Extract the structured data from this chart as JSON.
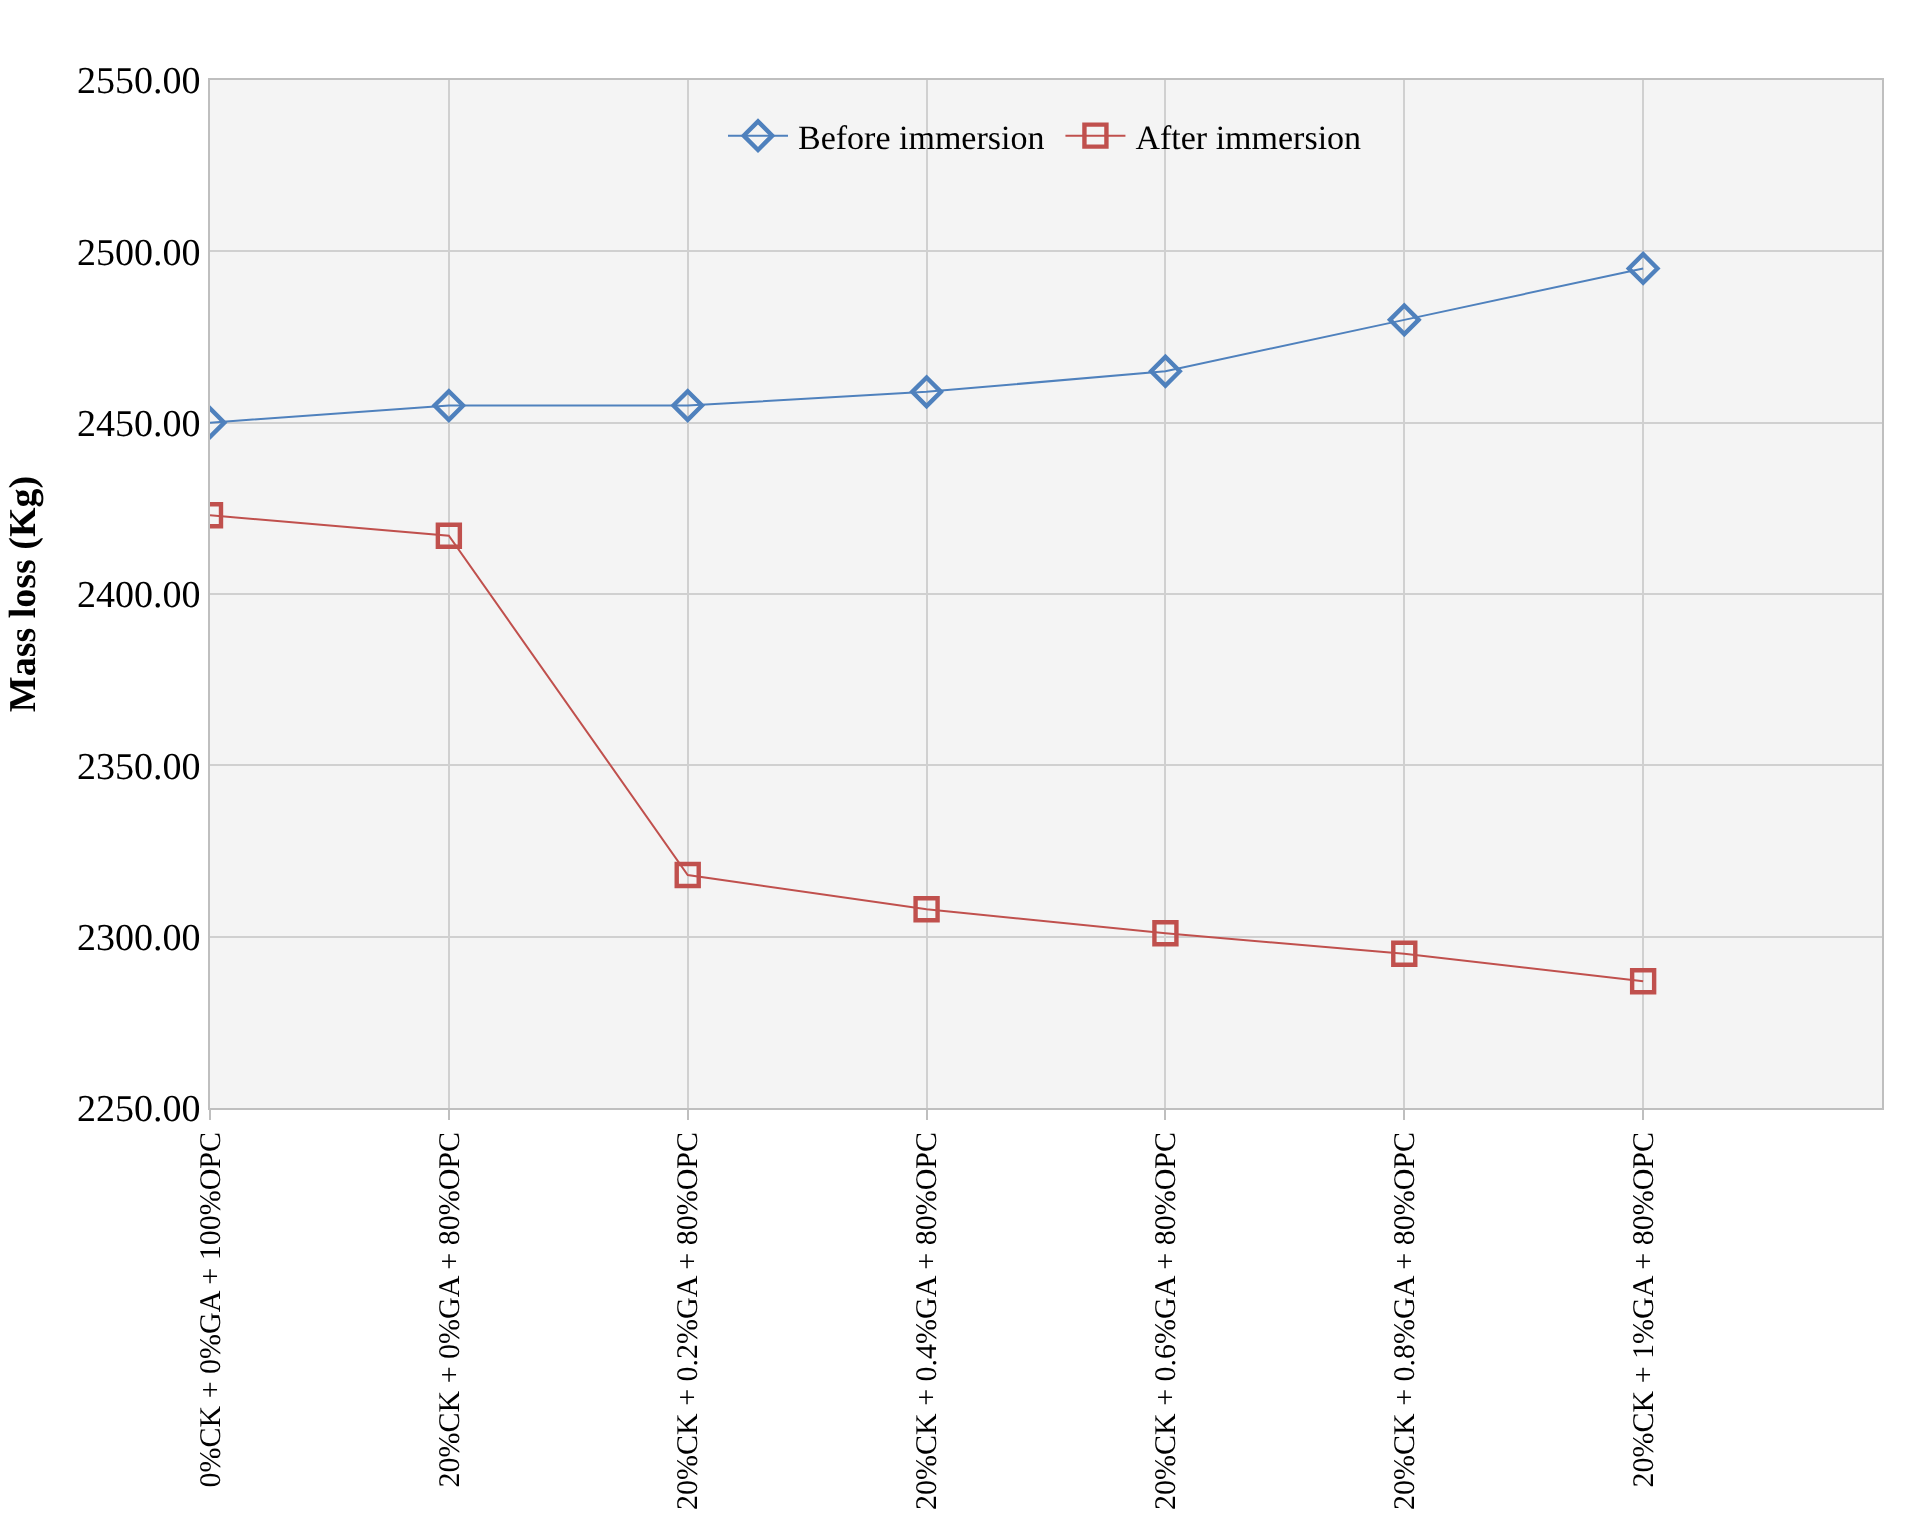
{
  "chart_data": {
    "type": "line",
    "ylabel": "Mass loss (Kg)",
    "categories": [
      "0%CK + 0%GA + 100%OPC",
      "20%CK + 0%GA + 80%OPC",
      "20%CK + 0.2%GA + 80%OPC",
      "20%CK + 0.4%GA + 80%OPC",
      "20%CK + 0.6%GA + 80%OPC",
      "20%CK + 0.8%GA + 80%OPC",
      "20%CK + 1%GA + 80%OPC"
    ],
    "series": [
      {
        "name": "Before immersion",
        "color": "#4f81bd",
        "marker": "diamond",
        "values": [
          2450,
          2455,
          2455,
          2459,
          2465,
          2480,
          2495
        ]
      },
      {
        "name": "After immersion",
        "color": "#c0504d",
        "marker": "square",
        "values": [
          2423,
          2417,
          2318,
          2308,
          2301,
          2295,
          2287
        ]
      }
    ],
    "ylim": [
      2250,
      2550
    ],
    "yticks": [
      {
        "value": 2250,
        "label": "2250.00"
      },
      {
        "value": 2300,
        "label": "2300.00"
      },
      {
        "value": 2350,
        "label": "2350.00"
      },
      {
        "value": 2400,
        "label": "2400.00"
      },
      {
        "value": 2450,
        "label": "2450.00"
      },
      {
        "value": 2500,
        "label": "2500.00"
      },
      {
        "value": 2550,
        "label": "2550.00"
      }
    ],
    "grid": true,
    "legend": "top",
    "line_style": "solid"
  }
}
